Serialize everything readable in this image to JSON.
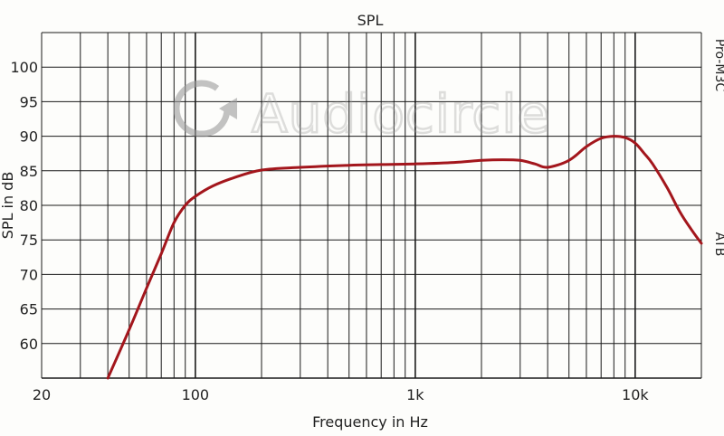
{
  "chart_data": {
    "type": "line",
    "title": "SPL",
    "xlabel": "Frequency in Hz",
    "ylabel": "SPL in dB",
    "xscale": "log",
    "xlim": [
      20,
      20000
    ],
    "ylim": [
      55,
      105
    ],
    "grid": true,
    "x_tick_labels": [
      {
        "value": 20,
        "label": "20"
      },
      {
        "value": 100,
        "label": "100"
      },
      {
        "value": 1000,
        "label": "1k"
      },
      {
        "value": 10000,
        "label": "10k"
      }
    ],
    "y_ticks": [
      60,
      65,
      70,
      75,
      80,
      85,
      90,
      95,
      100
    ],
    "side_labels": {
      "top": "Pro-M3C",
      "bottom": "ATB"
    },
    "series": [
      {
        "color": "#a3161c",
        "x": [
          40,
          50,
          60,
          70,
          80,
          90,
          100,
          120,
          150,
          200,
          300,
          500,
          700,
          1000,
          1500,
          2000,
          2500,
          3000,
          3500,
          4000,
          5000,
          6000,
          7000,
          8000,
          9000,
          10000,
          11000,
          12000,
          14000,
          16000,
          18000,
          20000
        ],
        "y": [
          55,
          62,
          68,
          73,
          77.5,
          80,
          81.3,
          82.8,
          84,
          85.1,
          85.5,
          85.8,
          85.9,
          86,
          86.2,
          86.5,
          86.6,
          86.5,
          86,
          85.5,
          86.5,
          88.5,
          89.7,
          90,
          89.8,
          89,
          87.5,
          86,
          82.5,
          79,
          76.5,
          74.5
        ]
      }
    ]
  },
  "watermark": {
    "text": "Audiocircle"
  }
}
